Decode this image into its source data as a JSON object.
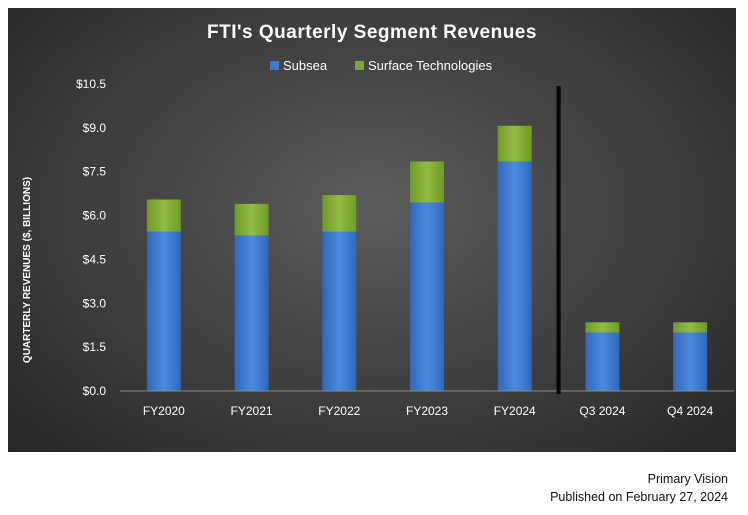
{
  "chart_data": {
    "type": "bar",
    "stacked": true,
    "title": "FTI's Quarterly Segment Revenues",
    "ylabel": "QUARTERLY REVENUES ($, BILLIONS)",
    "xlabel": "",
    "ylim": [
      0,
      10.5
    ],
    "yticks": [
      "$0.0",
      "$1.5",
      "$3.0",
      "$4.5",
      "$6.0",
      "$7.5",
      "$9.0",
      "$10.5"
    ],
    "ytick_values": [
      0,
      1.5,
      3.0,
      4.5,
      6.0,
      7.5,
      9.0,
      10.5
    ],
    "categories": [
      "FY2020",
      "FY2021",
      "FY2022",
      "FY2023",
      "FY2024",
      "Q3 2024",
      "Q4 2024"
    ],
    "series": [
      {
        "name": "Subsea",
        "color": "#3d7bd0",
        "values": [
          5.45,
          5.32,
          5.45,
          6.45,
          7.85,
          2.0,
          2.0
        ]
      },
      {
        "name": "Surface Technologies",
        "color": "#7fa832",
        "values": [
          1.1,
          1.08,
          1.25,
          1.4,
          1.22,
          0.35,
          0.35
        ]
      }
    ],
    "divider_after_category": "FY2024",
    "legend_position": "top-center",
    "grid": false
  },
  "footer": {
    "source": "Primary Vision",
    "date": "Published on February 27, 2024"
  }
}
